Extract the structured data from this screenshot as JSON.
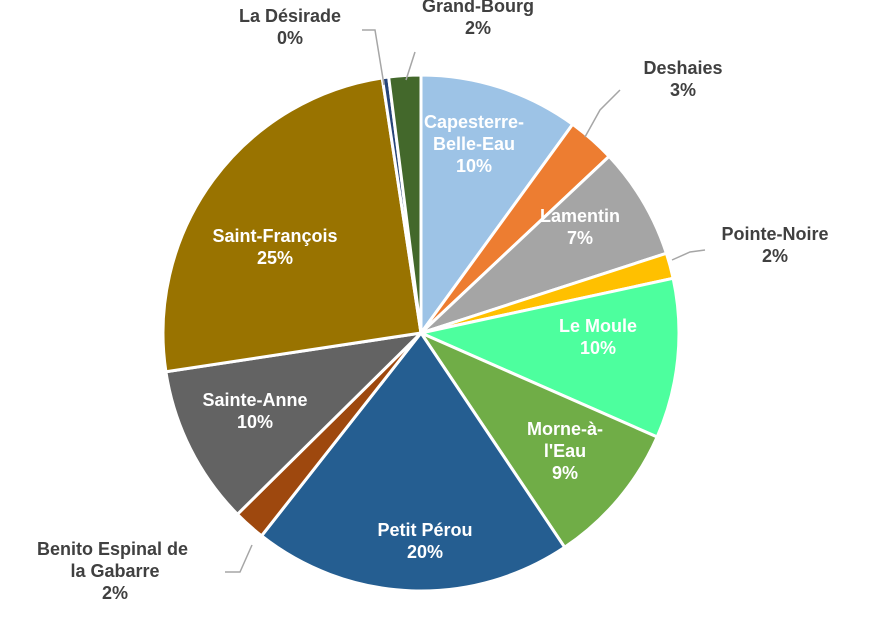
{
  "chart_data": {
    "type": "pie",
    "categories": [
      "Capesterre-Belle-Eau",
      "Deshaies",
      "Lamentin",
      "Pointe-Noire",
      "Le Moule",
      "Morne-à-l'Eau",
      "Petit Pérou",
      "Benito Espinal de la Gabarre",
      "Sainte-Anne",
      "Saint-François",
      "La Désirade",
      "Grand-Bourg"
    ],
    "values": [
      10,
      3,
      7,
      1.6,
      10,
      9,
      20,
      2,
      10,
      25,
      0.4,
      2
    ],
    "value_labels": [
      "10%",
      "3%",
      "7%",
      "2%",
      "10%",
      "9%",
      "20%",
      "2%",
      "10%",
      "25%",
      "0%",
      "2%"
    ],
    "colors": [
      "#9dc3e6",
      "#ed7d31",
      "#a5a5a5",
      "#ffc000",
      "#4dff9e",
      "#70ad47",
      "#255e91",
      "#9e480e",
      "#636363",
      "#997300",
      "#264478",
      "#43682b"
    ]
  }
}
